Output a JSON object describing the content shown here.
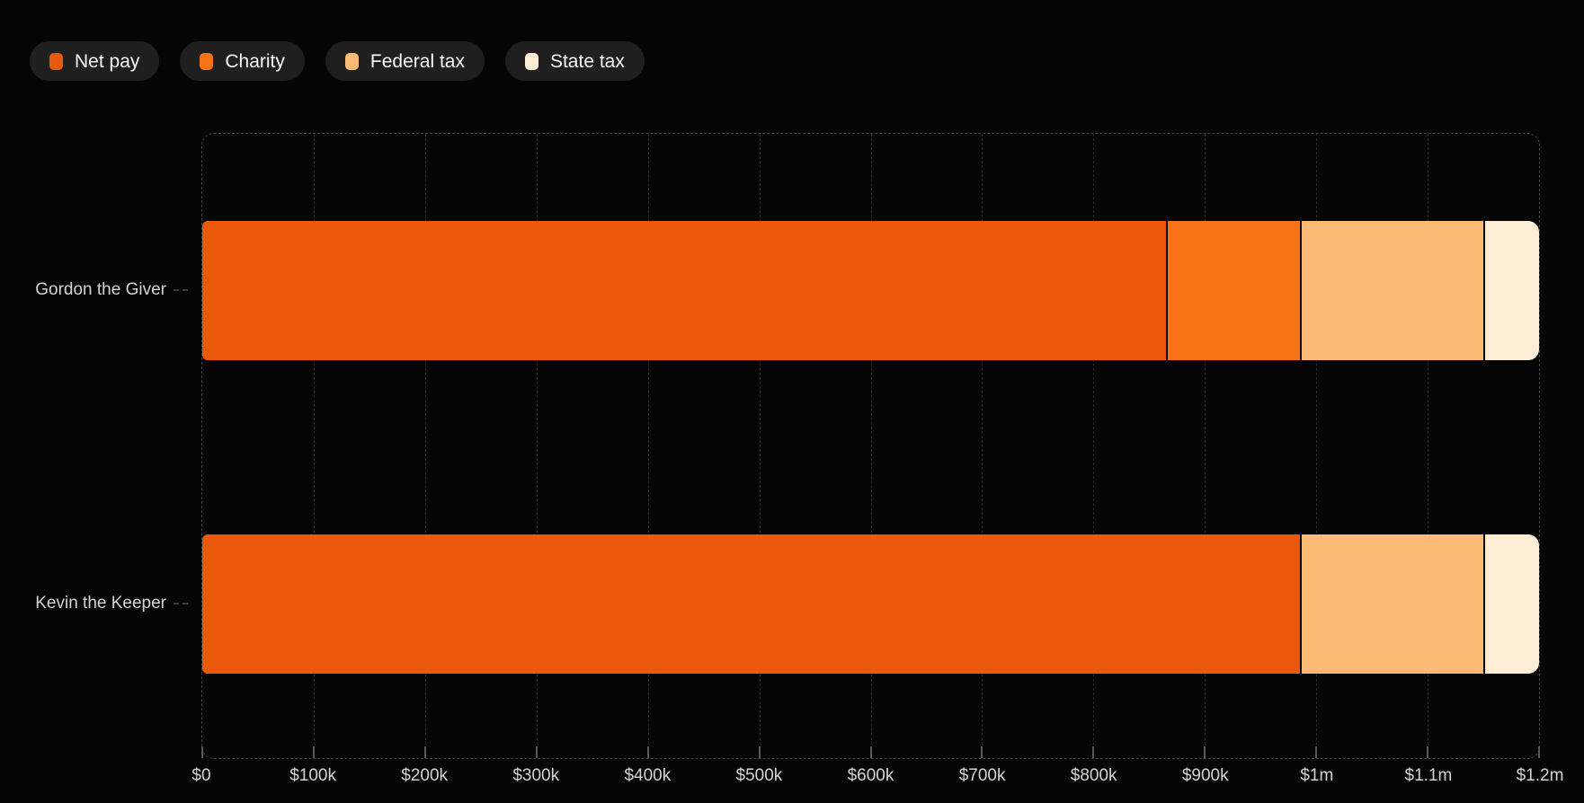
{
  "chart_data": {
    "type": "bar",
    "orientation": "horizontal-stacked",
    "categories": [
      "Gordon the Giver",
      "Kevin the Keeper"
    ],
    "series": [
      {
        "name": "Net pay",
        "color": "#ea580c",
        "values": [
          865000,
          985000
        ]
      },
      {
        "name": "Charity",
        "color": "#f97316",
        "values": [
          120000,
          0
        ]
      },
      {
        "name": "Federal tax",
        "color": "#fdba74",
        "values": [
          165000,
          165000
        ]
      },
      {
        "name": "State tax",
        "color": "#ffedd5",
        "values": [
          50000,
          50000
        ]
      }
    ],
    "x_ticks": [
      "$0",
      "$100k",
      "$200k",
      "$300k",
      "$400k",
      "$500k",
      "$600k",
      "$700k",
      "$800k",
      "$900k",
      "$1m",
      "$1.1m",
      "$1.2m"
    ],
    "xlim": [
      0,
      1200000
    ],
    "title": "",
    "xlabel": "",
    "ylabel": "",
    "grid": "vertical-dashed",
    "legend_position": "top-left",
    "background": "#050505"
  }
}
